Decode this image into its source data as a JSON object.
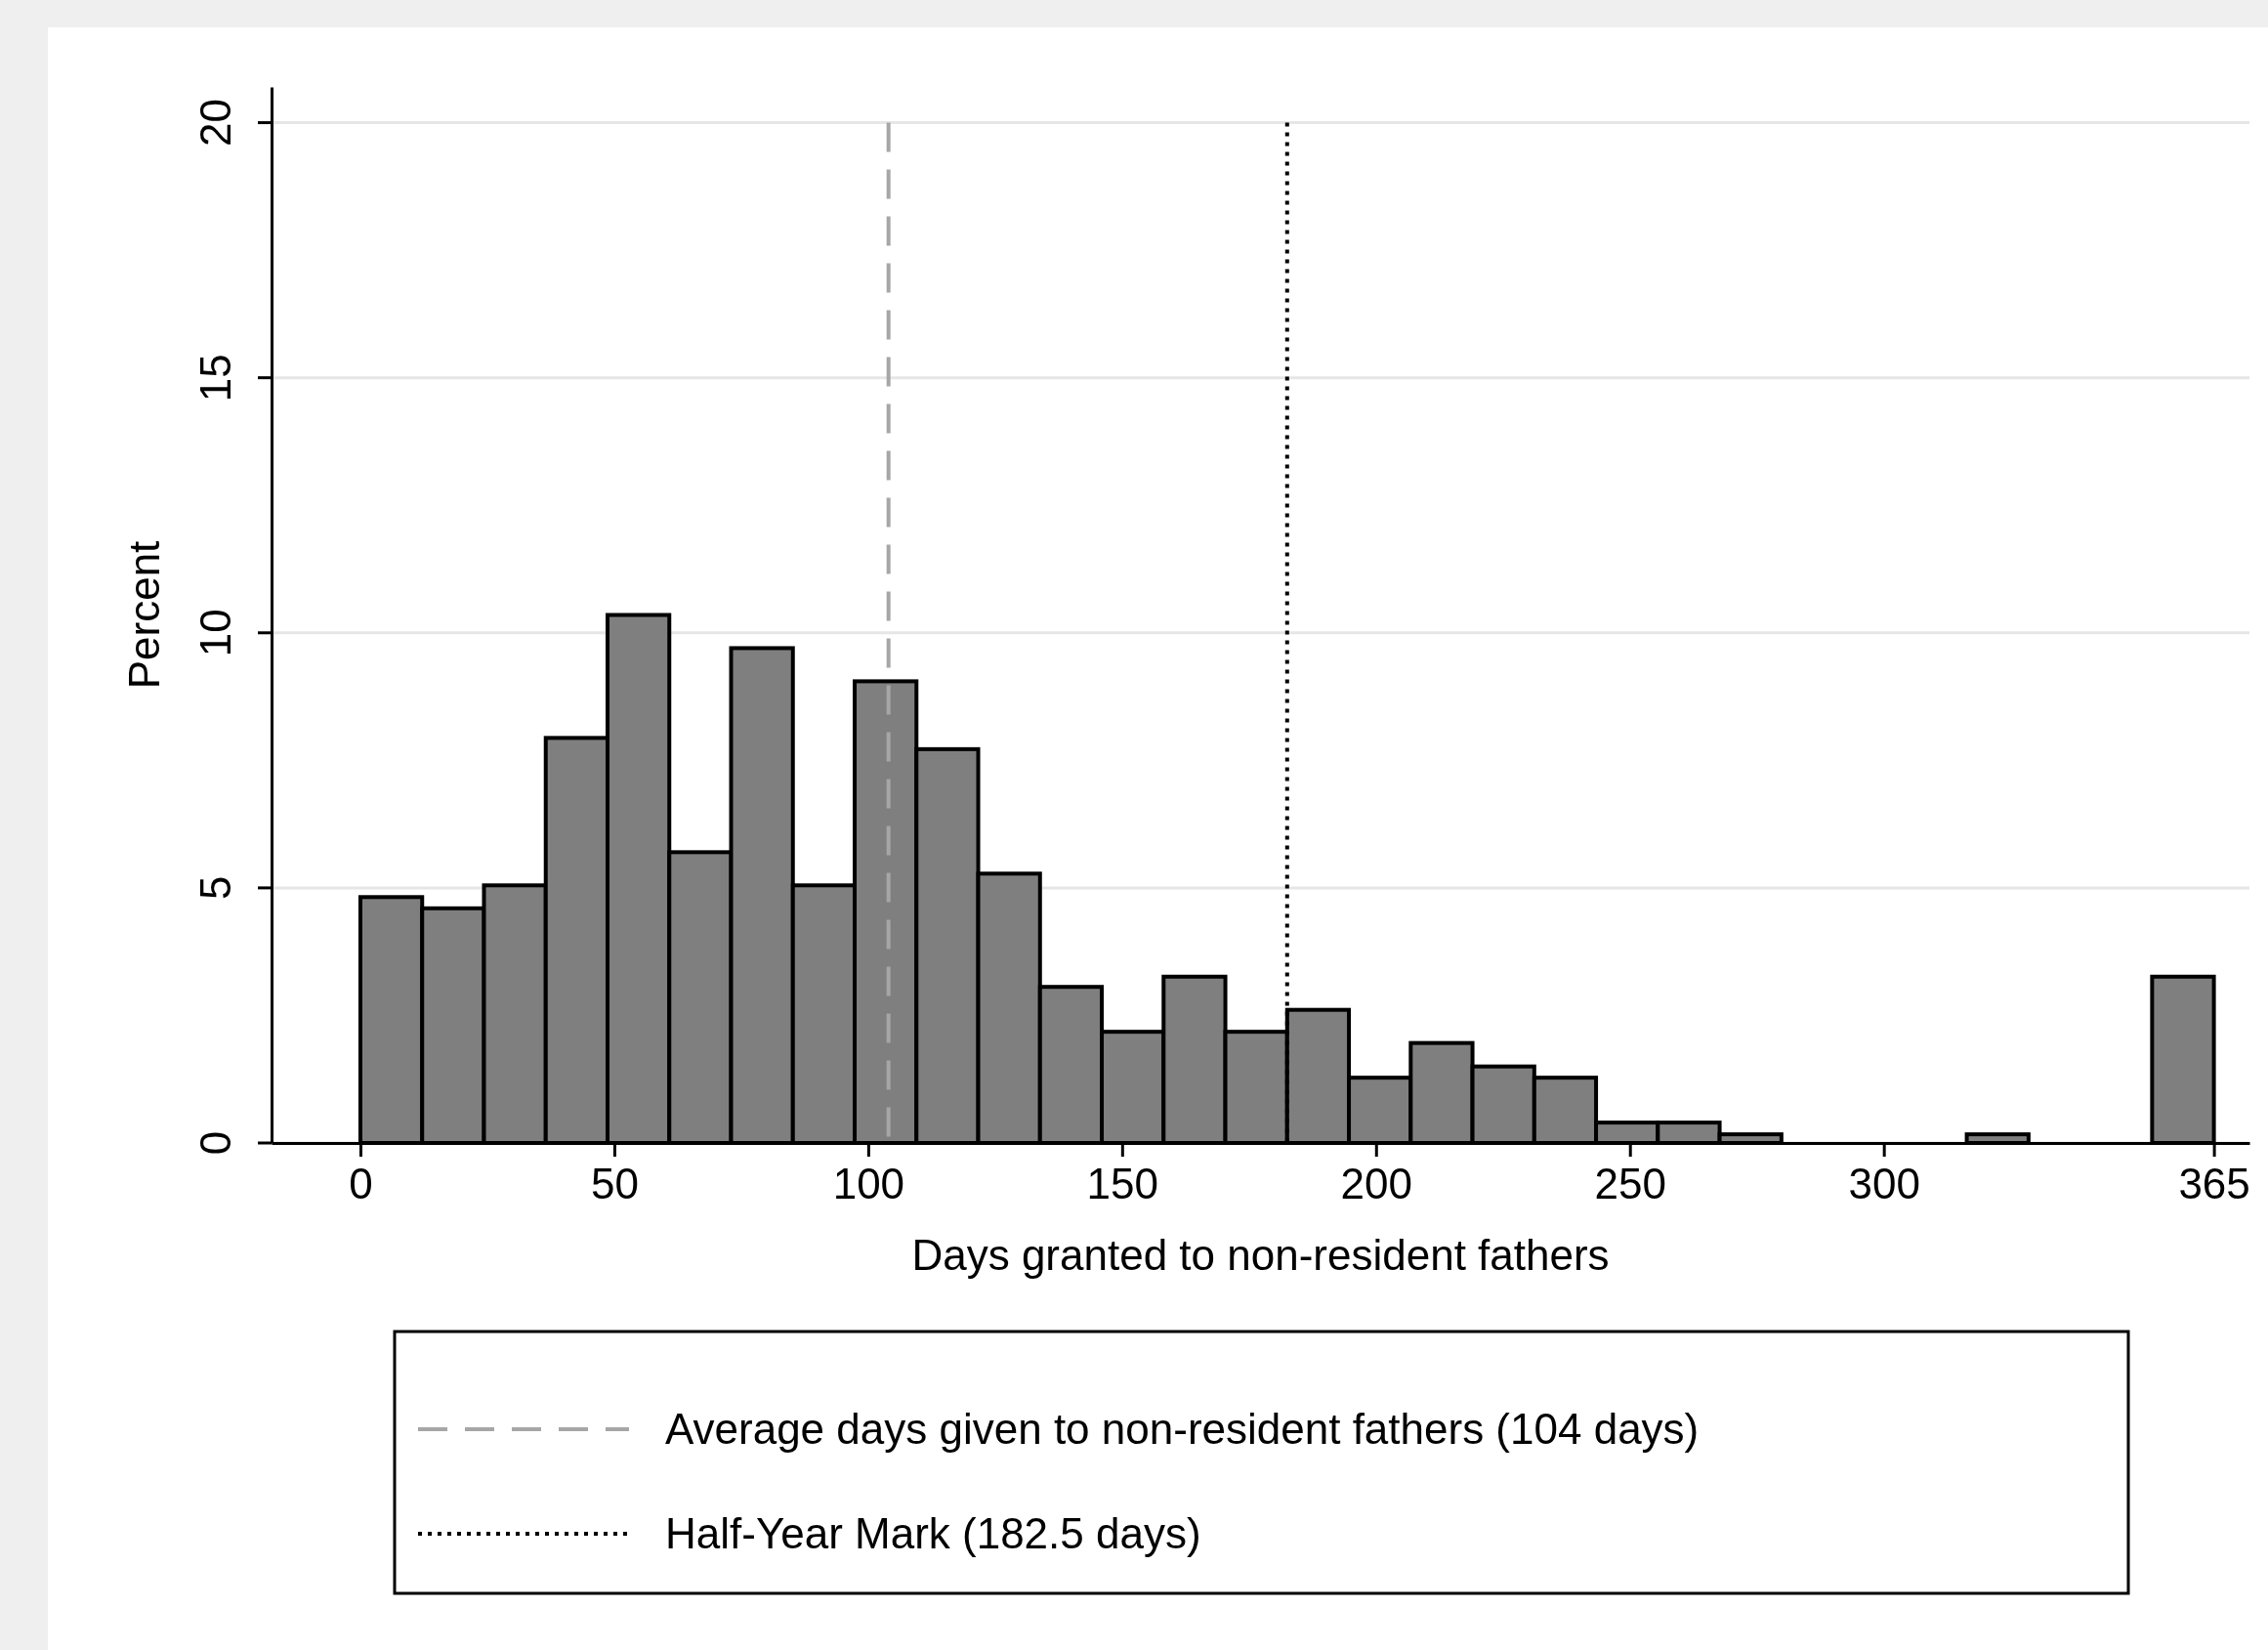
{
  "chart_data": {
    "type": "histogram",
    "xlabel": "Days granted to non-resident fathers",
    "ylabel": "Percent",
    "bins": [
      0,
      12.1667,
      24.3333,
      36.5,
      48.6667,
      60.8333,
      73,
      85.1667,
      97.3333,
      109.5,
      121.6667,
      133.8333,
      146,
      158.1667,
      170.3333,
      182.5,
      194.6667,
      206.8333,
      219,
      231.1667,
      243.3333,
      255.5,
      267.6667,
      279.8333,
      292,
      304.1667,
      316.3333,
      328.5,
      340.6667,
      352.8333,
      365
    ],
    "values": [
      4.82,
      4.6,
      5.05,
      7.94,
      10.35,
      5.7,
      9.7,
      5.05,
      9.05,
      7.72,
      5.28,
      3.06,
      2.18,
      3.26,
      2.18,
      2.61,
      1.28,
      1.96,
      1.5,
      1.28,
      0.4,
      0.4,
      0.17,
      0,
      0,
      0,
      0.17,
      0,
      0,
      3.26
    ],
    "color": "#7f7f7f",
    "xlim": [
      -17.5,
      372
    ],
    "xticks": [
      0,
      50,
      100,
      150,
      200,
      250,
      300,
      365
    ],
    "ylim": [
      0,
      20.7
    ],
    "yticks": [
      0,
      5,
      10,
      15,
      20
    ],
    "grid": "y",
    "legend": "bottom",
    "ref_lines": [
      {
        "axis": "x",
        "value": 104,
        "label": "Average days given to non-resident fathers (104 days)",
        "color": "#a6a6a6",
        "line_style": "dashed"
      },
      {
        "axis": "x",
        "value": 182.5,
        "label": "Half-Year Mark (182.5 days)",
        "color": "#000000",
        "line_style": "dotted"
      }
    ]
  }
}
